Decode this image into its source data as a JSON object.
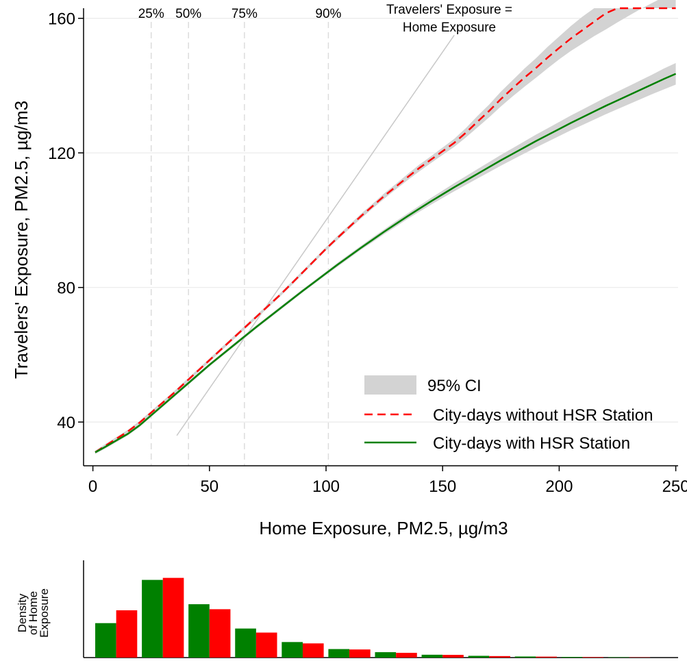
{
  "chart_data": [
    {
      "type": "line",
      "xlabel": "Home Exposure, PM2.5, µg/m3",
      "ylabel": "Travelers' Exposure, PM2.5, µg/m3",
      "xlim": [
        -4,
        251
      ],
      "ylim": [
        27,
        163
      ],
      "x_ticks": [
        0,
        50,
        100,
        150,
        200,
        250
      ],
      "y_ticks": [
        40,
        80,
        120,
        160
      ],
      "grid": "horizontal",
      "legend": {
        "placement": "bottom-right",
        "entries": [
          "95% CI",
          "City-days without HSR Station",
          "City-days with HSR Station"
        ]
      },
      "percentile_lines": [
        {
          "label": "25%",
          "x": 25
        },
        {
          "label": "50%",
          "x": 41
        },
        {
          "label": "75%",
          "x": 65
        },
        {
          "label": "90%",
          "x": 101
        }
      ],
      "reference_line": {
        "label_line1": "Travelers' Exposure =",
        "label_line2": "Home Exposure",
        "from": [
          36,
          36
        ],
        "to": [
          155,
          155
        ]
      },
      "series": [
        {
          "name": "City-days without HSR Station",
          "color": "#ff0000",
          "style": "dashed",
          "x": [
            1,
            5,
            10,
            15,
            20,
            25,
            30,
            35,
            40,
            45,
            50,
            55,
            60,
            65,
            70,
            75,
            80,
            85,
            90,
            95,
            100,
            105,
            110,
            115,
            120,
            125,
            130,
            135,
            140,
            145,
            150,
            155,
            160,
            165,
            170,
            175,
            180,
            185,
            190,
            195,
            200,
            205,
            210,
            215,
            220,
            225,
            230,
            235,
            240,
            245,
            250
          ],
          "y": [
            31,
            32.8,
            35,
            37.2,
            39.8,
            42.8,
            45.8,
            48.8,
            52,
            55.2,
            58.4,
            61.6,
            64.8,
            68,
            71.2,
            74.4,
            77.6,
            81,
            84.5,
            88,
            91.5,
            94.8,
            98,
            101.2,
            104.2,
            107.2,
            110,
            112.8,
            115.5,
            118,
            120.5,
            123,
            126,
            129.3,
            132.5,
            136,
            139.2,
            142.3,
            145.2,
            148.3,
            151.2,
            154,
            156.5,
            159,
            161.5,
            164,
            166.5,
            169,
            171.5,
            173.8,
            176
          ],
          "ci_low": [
            30.5,
            32.3,
            34.5,
            36.7,
            39.3,
            42.3,
            45.3,
            48.3,
            51.5,
            54.7,
            57.9,
            61.1,
            64.3,
            67.5,
            70.7,
            73.9,
            77.1,
            80.5,
            84,
            87.5,
            91,
            94.2,
            97.4,
            100.5,
            103.5,
            106.4,
            109.2,
            111.9,
            114.5,
            117,
            119.4,
            121.8,
            124.6,
            127.6,
            130.6,
            133.8,
            136.8,
            139.6,
            142.3,
            145.1,
            147.8,
            150.3,
            152.5,
            154.7,
            156.7,
            158.8,
            160.8,
            162.8,
            164.6,
            166.4,
            168
          ],
          "ci_high": [
            31.5,
            33.3,
            35.5,
            37.7,
            40.3,
            43.3,
            46.3,
            49.3,
            52.5,
            55.7,
            58.9,
            62.1,
            65.3,
            68.5,
            71.7,
            74.9,
            78.1,
            81.5,
            85,
            88.5,
            92,
            95.4,
            98.6,
            101.9,
            104.9,
            108,
            110.8,
            113.7,
            116.5,
            119,
            121.6,
            124.2,
            127.4,
            131,
            134.4,
            138.2,
            141.6,
            145,
            148.1,
            151.5,
            154.6,
            157.7,
            160.5,
            163.3,
            166.3,
            169.2,
            172.2,
            175.2,
            178.4,
            181.2,
            184
          ]
        },
        {
          "name": "City-days with HSR Station",
          "color": "#008000",
          "style": "solid",
          "x": [
            1,
            5,
            10,
            15,
            20,
            25,
            30,
            35,
            40,
            45,
            50,
            55,
            60,
            65,
            70,
            75,
            80,
            85,
            90,
            95,
            100,
            105,
            110,
            115,
            120,
            125,
            130,
            135,
            140,
            145,
            150,
            155,
            160,
            165,
            170,
            175,
            180,
            185,
            190,
            195,
            200,
            205,
            210,
            215,
            220,
            225,
            230,
            235,
            240,
            245,
            250
          ],
          "y": [
            31,
            32.5,
            34.5,
            36.5,
            39,
            42,
            45,
            48,
            51,
            54,
            57,
            59.8,
            62.6,
            65.4,
            68.2,
            70.9,
            73.6,
            76.3,
            79,
            81.6,
            84.2,
            86.8,
            89.3,
            91.8,
            94.2,
            96.6,
            98.9,
            101.2,
            103.4,
            105.6,
            107.7,
            109.8,
            111.8,
            113.8,
            115.8,
            117.8,
            119.7,
            121.6,
            123.5,
            125.3,
            127.1,
            128.9,
            130.6,
            132.3,
            134,
            135.6,
            137.2,
            138.8,
            140.4,
            142,
            143.5
          ],
          "ci_low": [
            30.5,
            32,
            34,
            36,
            38.5,
            41.5,
            44.5,
            47.5,
            50.5,
            53.5,
            56.5,
            59.3,
            62.1,
            64.9,
            67.7,
            70.4,
            73.1,
            75.8,
            78.5,
            81.1,
            83.7,
            86.2,
            88.7,
            91.2,
            93.5,
            95.9,
            98.1,
            100.4,
            102.5,
            104.6,
            106.6,
            108.6,
            110.5,
            112.4,
            114.3,
            116.2,
            118,
            119.8,
            121.6,
            123.3,
            125,
            126.7,
            128.3,
            129.9,
            131.5,
            133,
            134.5,
            136,
            137.5,
            138.9,
            140.3
          ],
          "ci_high": [
            31.5,
            33,
            35,
            37,
            39.5,
            42.5,
            45.5,
            48.5,
            51.5,
            54.5,
            57.5,
            60.3,
            63.1,
            65.9,
            68.7,
            71.4,
            74.1,
            76.8,
            79.5,
            82.1,
            84.7,
            87.4,
            89.9,
            92.4,
            94.9,
            97.3,
            99.7,
            102,
            104.3,
            106.6,
            108.8,
            111,
            113.1,
            115.2,
            117.3,
            119.4,
            121.4,
            123.4,
            125.4,
            127.3,
            129.2,
            131.1,
            132.9,
            134.7,
            136.5,
            138.2,
            139.9,
            141.6,
            143.3,
            145.1,
            146.7
          ]
        }
      ]
    },
    {
      "type": "bar",
      "ylabel_line1": "Density",
      "ylabel_line2": "of Home",
      "ylabel_line3": "Exposure",
      "categories": [
        10,
        30,
        50,
        70,
        90,
        110,
        130,
        150,
        170,
        190,
        210,
        230
      ],
      "series": [
        {
          "name": "City-days with HSR Station",
          "color": "#008000",
          "values": [
            0.0255,
            0.0575,
            0.0395,
            0.0215,
            0.0115,
            0.0063,
            0.004,
            0.0021,
            0.0013,
            0.0008,
            0.0005,
            0.0003
          ]
        },
        {
          "name": "City-days without HSR Station",
          "color": "#ff0000",
          "values": [
            0.035,
            0.059,
            0.0358,
            0.0185,
            0.0105,
            0.006,
            0.0035,
            0.002,
            0.0011,
            0.0007,
            0.0004,
            0.0002
          ]
        }
      ],
      "ylim": [
        0,
        0.072
      ]
    }
  ]
}
